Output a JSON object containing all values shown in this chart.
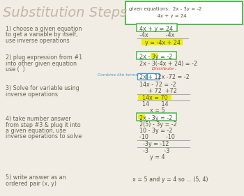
{
  "title": "Substitution Steps",
  "bg_color": "#f2ede4",
  "title_color": "#c0b8a8",
  "title_fontsize": 14,
  "green_box_text_line1": "given equations:  2x - 3y = -2",
  "green_box_text_line2": "                  4x + y = 24",
  "green_color": "#55bb55",
  "step1_left": [
    "1) choose a given equation",
    "to get a variable by itself,",
    "use inverse operations"
  ],
  "step2_left": [
    "2) plug expression from #1",
    "into other given equation",
    "use (  )"
  ],
  "step3_left": [
    "3) Solve for variable using",
    "inverse operations"
  ],
  "step4_left": [
    "4) take number answer",
    "from step #3 & plug it into",
    "a given equation, use",
    "inverse operations to solve"
  ],
  "step5_left": [
    "5) write answer as an",
    "ordered pair (x, y)"
  ],
  "step5_right": "x = 5 and y = 4 so ... (5, 4)",
  "red_color": "#dd3322",
  "blue_color": "#4499cc",
  "yellow_highlight": "#eeee00",
  "text_color": "#666655",
  "math_color": "#555544",
  "line_color": "#aaaaaa"
}
